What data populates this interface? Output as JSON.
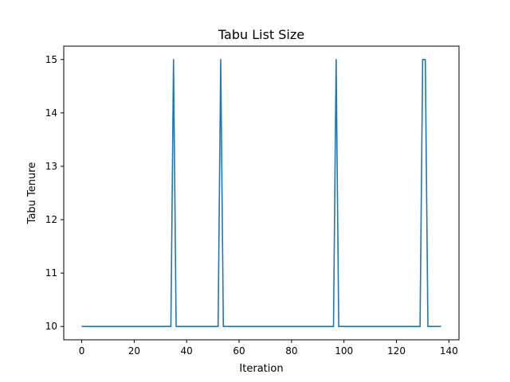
{
  "chart_data": {
    "type": "line",
    "title": "Tabu List Size",
    "xlabel": "Iteration",
    "ylabel": "Tabu Tenure",
    "xlim": [
      -6.85,
      143.85
    ],
    "ylim": [
      9.75,
      15.25
    ],
    "x_ticks": [
      0,
      20,
      40,
      60,
      80,
      100,
      120,
      140
    ],
    "y_ticks": [
      10,
      11,
      12,
      13,
      14,
      15
    ],
    "grid": false,
    "series": [
      {
        "color": "#1f77b4",
        "x": [
          0,
          34,
          35,
          36,
          52,
          53,
          54,
          96,
          97,
          98,
          129,
          130,
          131,
          132,
          137
        ],
        "y": [
          10,
          10,
          15,
          10,
          10,
          15,
          10,
          10,
          15,
          10,
          10,
          15,
          15,
          10,
          10
        ]
      }
    ]
  }
}
